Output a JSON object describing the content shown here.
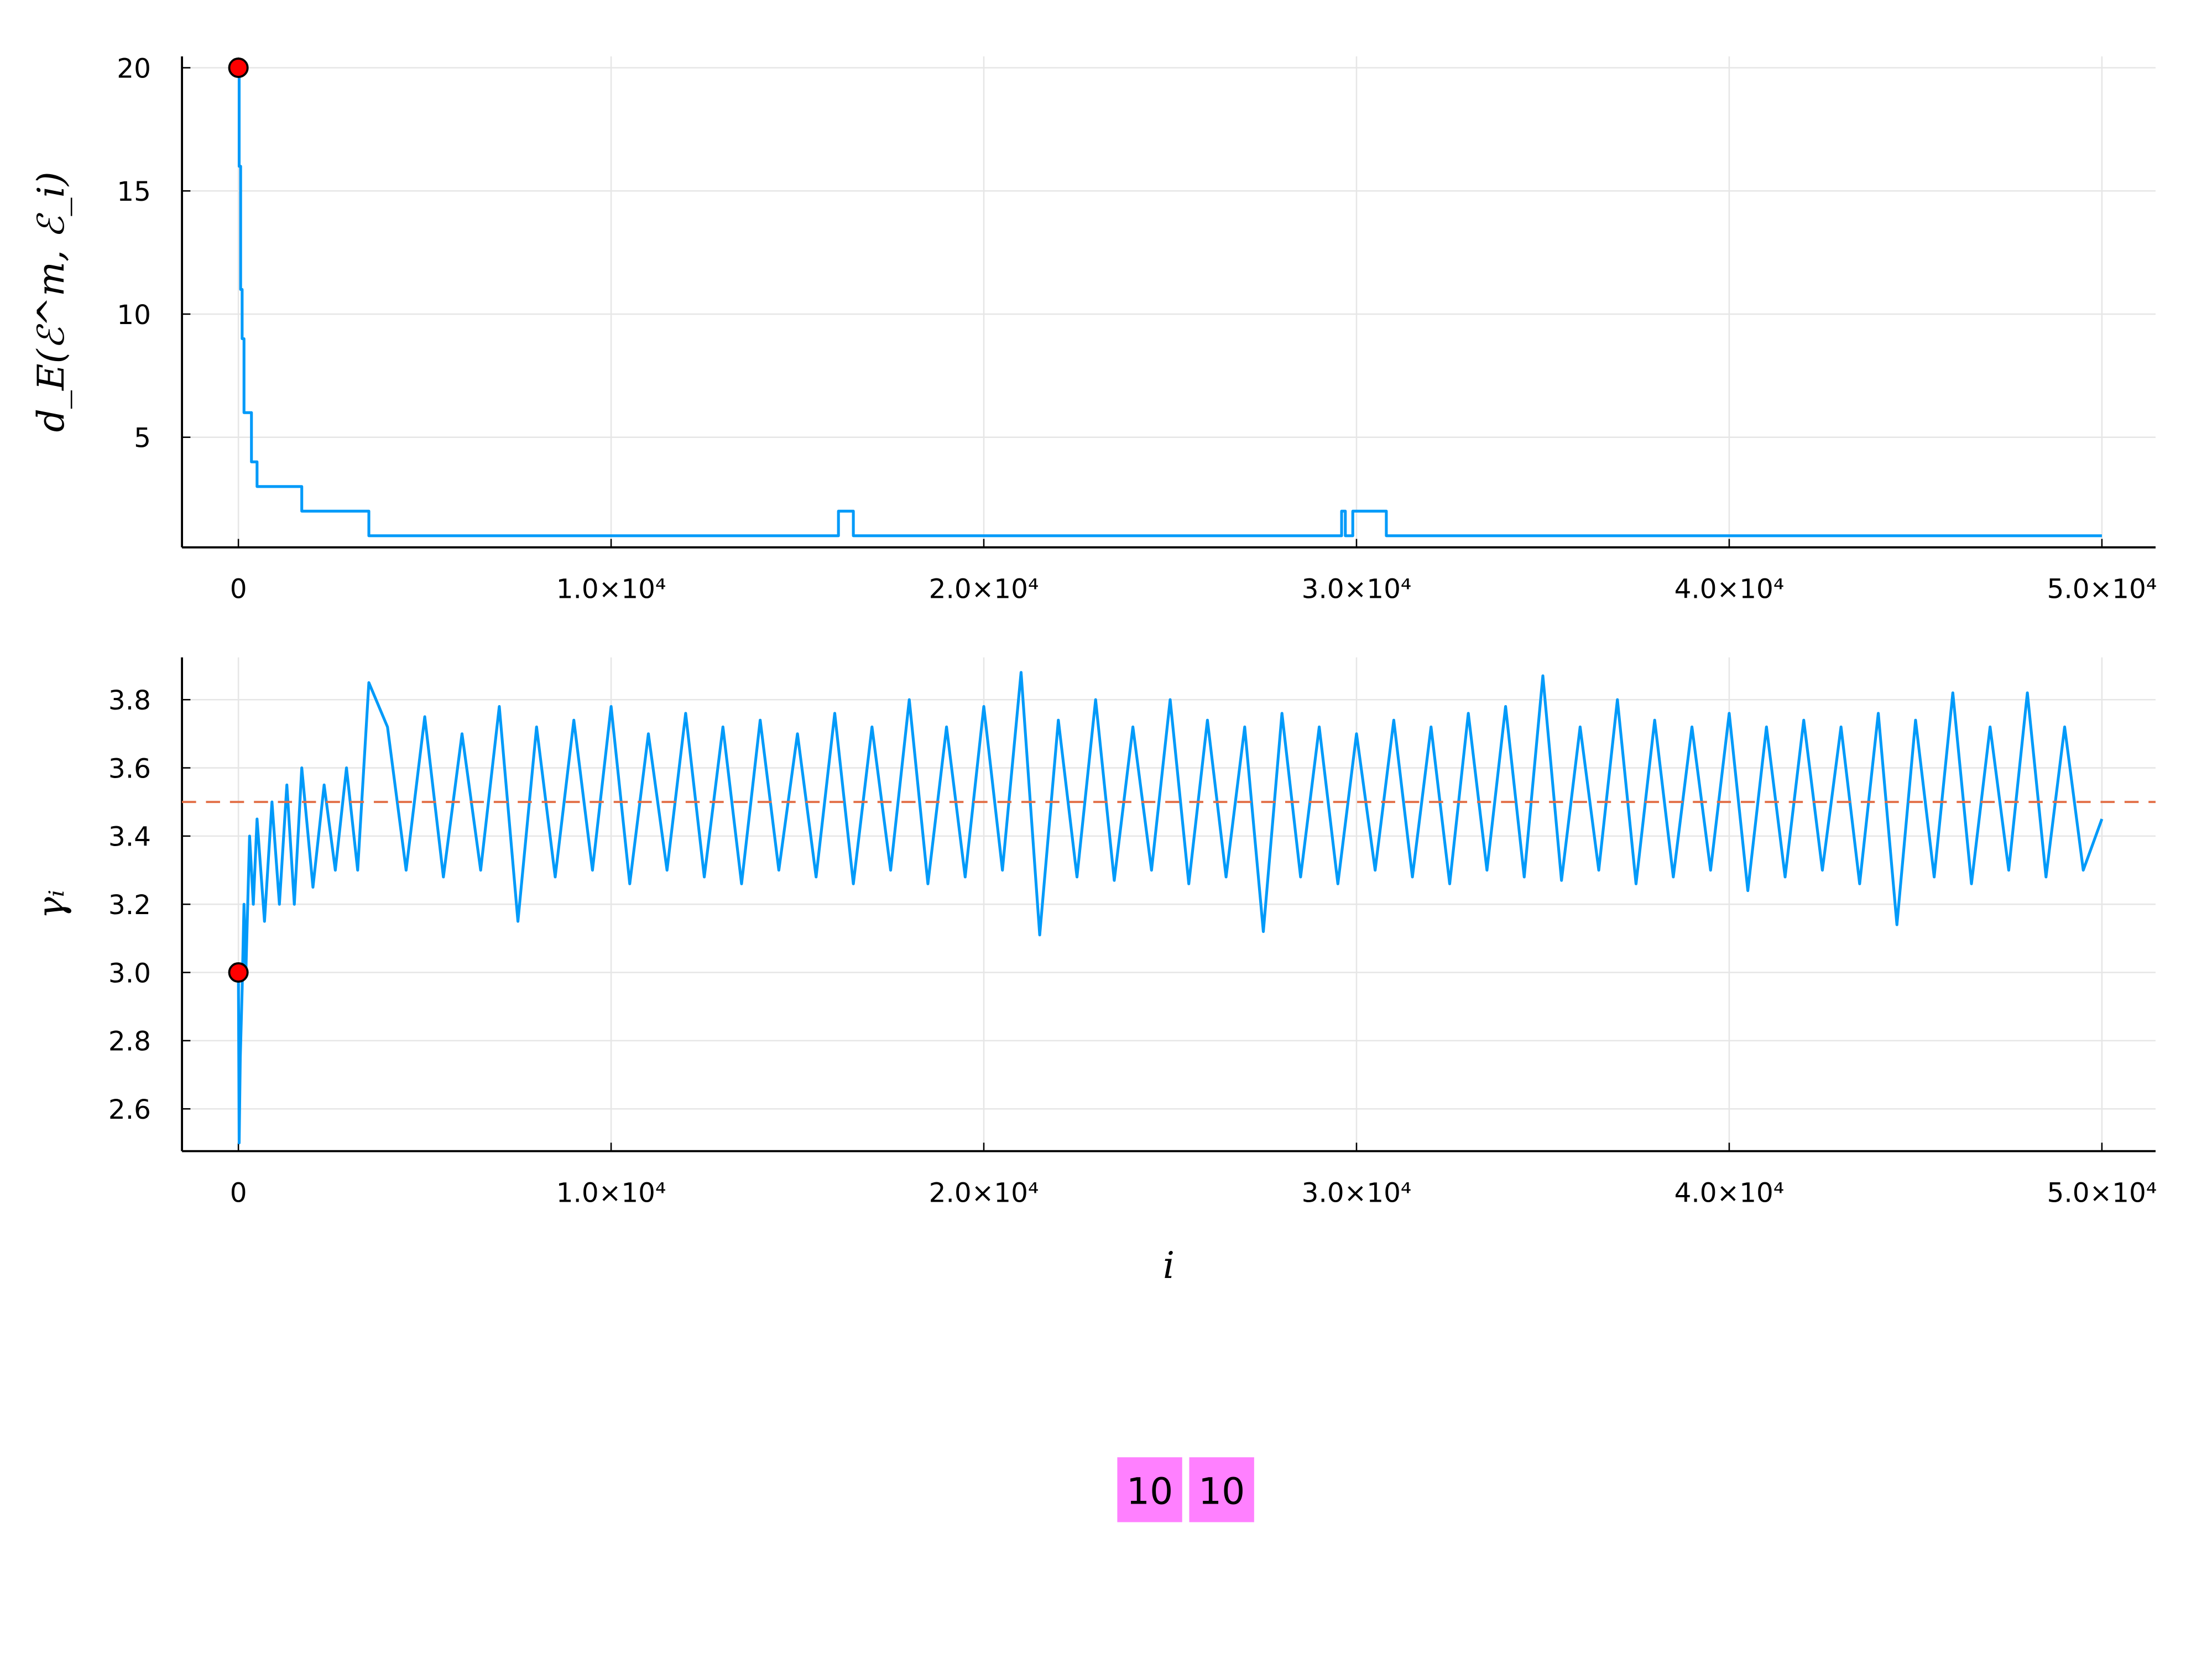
{
  "chart_data": [
    {
      "type": "line",
      "ylabel": "d_E(ℰ^m, ℰ_i)",
      "xlim": [
        -1514,
        51440
      ],
      "ylim": [
        0.53,
        20.46
      ],
      "xticks": [
        0,
        {
          "value": 10000,
          "label": "1.0×10⁴"
        },
        {
          "value": 20000,
          "label": "2.0×10⁴"
        },
        {
          "value": 30000,
          "label": "3.0×10⁴"
        },
        {
          "value": 40000,
          "label": "4.0×10⁴"
        },
        {
          "value": 50000,
          "label": "5.0×10⁴"
        }
      ],
      "yticks": [
        5,
        10,
        15,
        20
      ],
      "grid": true,
      "series": [
        {
          "color": "#009af9",
          "x": [
            0,
            20,
            20,
            60,
            60,
            100,
            100,
            150,
            150,
            350,
            350,
            500,
            500,
            1700,
            1700,
            3500,
            3500,
            16100,
            16100,
            16500,
            16500,
            29600,
            29600,
            29700,
            29700,
            29900,
            29900,
            30800,
            30800,
            50000
          ],
          "values": [
            20,
            20,
            16,
            16,
            11,
            11,
            9,
            9,
            6,
            6,
            4,
            4,
            3,
            3,
            2,
            2,
            1,
            1,
            2,
            2,
            1,
            1,
            2,
            2,
            1,
            1,
            2,
            2,
            1,
            1
          ]
        }
      ],
      "markers": [
        {
          "x": 0,
          "y": 20,
          "color": "#ff0000"
        }
      ]
    },
    {
      "type": "line",
      "ylabel": "γᵢ",
      "xlabel": "i",
      "xlim": [
        -1514,
        51440
      ],
      "ylim": [
        2.476,
        3.924
      ],
      "xticks": [
        0,
        {
          "value": 10000,
          "label": "1.0×10⁴"
        },
        {
          "value": 20000,
          "label": "2.0×10⁴"
        },
        {
          "value": 30000,
          "label": "3.0×10⁴"
        },
        {
          "value": 40000,
          "label": "4.0×10⁴"
        },
        {
          "value": 50000,
          "label": "5.0×10⁴"
        }
      ],
      "yticks": [
        {
          "value": 2.6,
          "label": "2.6"
        },
        {
          "value": 2.8,
          "label": "2.8"
        },
        {
          "value": 3.0,
          "label": "3.0"
        },
        {
          "value": 3.2,
          "label": "3.2"
        },
        {
          "value": 3.4,
          "label": "3.4"
        },
        {
          "value": 3.6,
          "label": "3.6"
        },
        {
          "value": 3.8,
          "label": "3.8"
        }
      ],
      "grid": true,
      "series": [
        {
          "color": "#009af9",
          "x": [
            0,
            20,
            50,
            100,
            150,
            200,
            300,
            400,
            500,
            700,
            900,
            1100,
            1300,
            1500,
            1700,
            2000,
            2300,
            2600,
            2900,
            3200,
            3500,
            4000,
            4500,
            5000,
            5500,
            6000,
            6500,
            7000,
            7500,
            8000,
            8500,
            9000,
            9500,
            10000,
            10500,
            11000,
            11500,
            12000,
            12500,
            13000,
            13500,
            14000,
            14500,
            15000,
            15500,
            16000,
            16500,
            17000,
            17500,
            18000,
            18500,
            19000,
            19500,
            20000,
            20500,
            21000,
            21500,
            22000,
            22500,
            23000,
            23500,
            24000,
            24500,
            25000,
            25500,
            26000,
            26500,
            27000,
            27500,
            28000,
            28500,
            29000,
            29500,
            30000,
            30500,
            31000,
            31500,
            32000,
            32500,
            33000,
            33500,
            34000,
            34500,
            35000,
            35500,
            36000,
            36500,
            37000,
            37500,
            38000,
            38500,
            39000,
            39500,
            40000,
            40500,
            41000,
            41500,
            42000,
            42500,
            43000,
            43500,
            44000,
            44500,
            45000,
            45500,
            46000,
            46500,
            47000,
            47500,
            48000,
            48500,
            49000,
            49500,
            50000
          ],
          "values": [
            3.0,
            2.5,
            2.75,
            2.95,
            3.2,
            3.0,
            3.4,
            3.2,
            3.45,
            3.15,
            3.5,
            3.2,
            3.55,
            3.2,
            3.6,
            3.25,
            3.55,
            3.3,
            3.6,
            3.3,
            3.85,
            3.72,
            3.3,
            3.75,
            3.28,
            3.7,
            3.3,
            3.78,
            3.15,
            3.72,
            3.28,
            3.74,
            3.3,
            3.78,
            3.26,
            3.7,
            3.3,
            3.76,
            3.28,
            3.72,
            3.26,
            3.74,
            3.3,
            3.7,
            3.28,
            3.76,
            3.26,
            3.72,
            3.3,
            3.8,
            3.26,
            3.72,
            3.28,
            3.78,
            3.3,
            3.88,
            3.11,
            3.74,
            3.28,
            3.8,
            3.27,
            3.72,
            3.3,
            3.8,
            3.26,
            3.74,
            3.28,
            3.72,
            3.12,
            3.76,
            3.28,
            3.72,
            3.26,
            3.7,
            3.3,
            3.74,
            3.28,
            3.72,
            3.26,
            3.76,
            3.3,
            3.78,
            3.28,
            3.87,
            3.27,
            3.72,
            3.3,
            3.8,
            3.26,
            3.74,
            3.28,
            3.72,
            3.3,
            3.76,
            3.24,
            3.72,
            3.28,
            3.74,
            3.3,
            3.72,
            3.26,
            3.76,
            3.14,
            3.74,
            3.28,
            3.82,
            3.26,
            3.72,
            3.3,
            3.82,
            3.28,
            3.72,
            3.3,
            3.45
          ]
        }
      ],
      "hline": {
        "value": 3.5,
        "color": "#e26f46"
      },
      "markers": [
        {
          "x": 0,
          "y": 3.0,
          "color": "#ff0000"
        }
      ]
    }
  ],
  "footer": {
    "badges": [
      "10",
      "10"
    ]
  }
}
